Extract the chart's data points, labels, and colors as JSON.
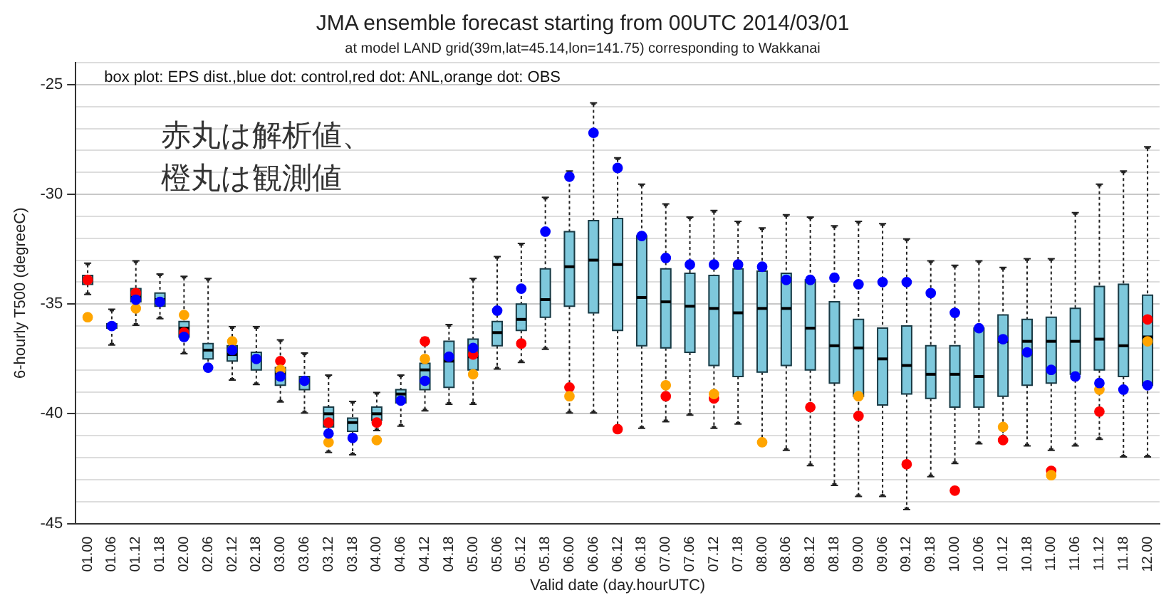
{
  "chart_data": {
    "type": "box",
    "title": "JMA ensemble forecast starting from 00UTC 2014/03/01",
    "subtitle": "at model LAND grid(39m,lat=45.14,lon=141.75) corresponding to Wakkanai",
    "xlabel": "Valid date (day.hourUTC)",
    "ylabel": "6-hourly T500 (degreeC)",
    "annotations": [
      "box plot: EPS dist.,blue dot: control,red dot: ANL,orange dot: OBS",
      "赤丸は解析値、橙丸は観測値"
    ],
    "categories": [
      "01.00",
      "01.06",
      "01.12",
      "01.18",
      "02.00",
      "02.06",
      "02.12",
      "02.18",
      "03.00",
      "03.06",
      "03.12",
      "03.18",
      "04.00",
      "04.06",
      "04.12",
      "04.18",
      "05.00",
      "05.06",
      "05.12",
      "05.18",
      "06.00",
      "06.06",
      "06.12",
      "06.18",
      "07.00",
      "07.06",
      "07.12",
      "07.18",
      "08.00",
      "08.06",
      "08.12",
      "08.18",
      "09.00",
      "09.06",
      "09.12",
      "09.18",
      "10.00",
      "10.06",
      "10.12",
      "10.18",
      "11.00",
      "11.06",
      "11.12",
      "11.18",
      "12.00"
    ],
    "ylim": [
      -45,
      -24
    ],
    "yticks": [
      -45,
      {
        "value": -44,
        "label": null
      },
      {
        "value": -43,
        "label": null
      },
      {
        "value": -42,
        "label": null
      },
      {
        "value": -41,
        "label": null
      },
      -40,
      {
        "value": -39,
        "label": null
      },
      {
        "value": -38,
        "label": null
      },
      {
        "value": -37,
        "label": null
      },
      {
        "value": -36,
        "label": null
      },
      -35,
      {
        "value": -34,
        "label": null
      },
      {
        "value": -33,
        "label": null
      },
      {
        "value": -32,
        "label": null
      },
      {
        "value": -31,
        "label": null
      },
      -30,
      {
        "value": -29,
        "label": null
      },
      {
        "value": -28,
        "label": null
      },
      {
        "value": -27,
        "label": null
      },
      {
        "value": -26,
        "label": null
      },
      -25,
      {
        "value": -24,
        "label": null
      }
    ],
    "grid": "y",
    "legend": false,
    "marker": "circle",
    "series": [
      {
        "type": "box",
        "color": "#7ec8dc",
        "boxes": [
          {
            "low": -34.5,
            "q1": -34.1,
            "median": -33.9,
            "q3": -33.7,
            "high": -33.2
          },
          {
            "low": -36.8,
            "q1": -36.1,
            "median": -36.0,
            "q3": -35.9,
            "high": -35.3
          },
          {
            "low": -35.9,
            "q1": -34.9,
            "median": -34.7,
            "q3": -34.3,
            "high": -33.1
          },
          {
            "low": -35.6,
            "q1": -35.1,
            "median": -34.8,
            "q3": -34.5,
            "high": -33.7
          },
          {
            "low": -37.2,
            "q1": -36.5,
            "median": -36.1,
            "q3": -35.8,
            "high": -33.8
          },
          {
            "low": -37.9,
            "q1": -37.5,
            "median": -37.1,
            "q3": -36.8,
            "high": -33.9
          },
          {
            "low": -38.4,
            "q1": -37.6,
            "median": -37.3,
            "q3": -36.9,
            "high": -36.1
          },
          {
            "low": -38.6,
            "q1": -38.0,
            "median": -37.5,
            "q3": -37.2,
            "high": -36.1
          },
          {
            "low": -39.4,
            "q1": -38.7,
            "median": -38.2,
            "q3": -37.9,
            "high": -36.7
          },
          {
            "low": -39.9,
            "q1": -38.9,
            "median": -38.5,
            "q3": -38.3,
            "high": -37.3
          },
          {
            "low": -41.7,
            "q1": -40.6,
            "median": -40.0,
            "q3": -39.7,
            "high": -38.3
          },
          {
            "low": -41.8,
            "q1": -40.8,
            "median": -40.4,
            "q3": -40.2,
            "high": -39.5
          },
          {
            "low": -40.7,
            "q1": -40.3,
            "median": -40.0,
            "q3": -39.7,
            "high": -39.1
          },
          {
            "low": -40.5,
            "q1": -39.5,
            "median": -39.1,
            "q3": -38.9,
            "high": -38.3
          },
          {
            "low": -39.8,
            "q1": -38.9,
            "median": -38.0,
            "q3": -37.7,
            "high": -36.6
          },
          {
            "low": -39.5,
            "q1": -38.8,
            "median": -37.6,
            "q3": -36.7,
            "high": -36.0
          },
          {
            "low": -39.5,
            "q1": -38.0,
            "median": -37.4,
            "q3": -36.6,
            "high": -33.9
          },
          {
            "low": -37.9,
            "q1": -36.9,
            "median": -36.3,
            "q3": -35.8,
            "high": -32.9
          },
          {
            "low": -37.6,
            "q1": -36.2,
            "median": -35.7,
            "q3": -35.0,
            "high": -32.3
          },
          {
            "low": -37.0,
            "q1": -35.6,
            "median": -34.8,
            "q3": -33.4,
            "high": -30.2
          },
          {
            "low": -39.9,
            "q1": -35.1,
            "median": -33.3,
            "q3": -31.7,
            "high": -29.0
          },
          {
            "low": -39.9,
            "q1": -35.4,
            "median": -33.0,
            "q3": -31.2,
            "high": -25.9
          },
          {
            "low": -40.6,
            "q1": -36.2,
            "median": -33.2,
            "q3": -31.1,
            "high": -28.4
          },
          {
            "low": -40.6,
            "q1": -36.9,
            "median": -34.7,
            "q3": -31.9,
            "high": -29.6
          },
          {
            "low": -40.3,
            "q1": -37.0,
            "median": -34.9,
            "q3": -33.4,
            "high": -30.5
          },
          {
            "low": -40.0,
            "q1": -37.2,
            "median": -35.1,
            "q3": -33.6,
            "high": -31.1
          },
          {
            "low": -40.6,
            "q1": -37.8,
            "median": -35.2,
            "q3": -33.7,
            "high": -30.8
          },
          {
            "low": -40.4,
            "q1": -38.3,
            "median": -35.4,
            "q3": -33.4,
            "high": -31.3
          },
          {
            "low": -41.2,
            "q1": -38.1,
            "median": -35.2,
            "q3": -33.5,
            "high": -31.6
          },
          {
            "low": -41.6,
            "q1": -37.8,
            "median": -35.2,
            "q3": -33.6,
            "high": -31.0
          },
          {
            "low": -42.3,
            "q1": -38.0,
            "median": -36.1,
            "q3": -33.9,
            "high": -31.1
          },
          {
            "low": -43.2,
            "q1": -38.6,
            "median": -36.9,
            "q3": -34.9,
            "high": -31.5
          },
          {
            "low": -43.7,
            "q1": -39.2,
            "median": -37.0,
            "q3": -35.7,
            "high": -31.3
          },
          {
            "low": -43.7,
            "q1": -39.6,
            "median": -37.5,
            "q3": -36.1,
            "high": -31.4
          },
          {
            "low": -44.3,
            "q1": -39.1,
            "median": -37.8,
            "q3": -36.0,
            "high": -32.1
          },
          {
            "low": -42.8,
            "q1": -39.3,
            "median": -38.2,
            "q3": -36.9,
            "high": -33.1
          },
          {
            "low": -42.2,
            "q1": -39.7,
            "median": -38.2,
            "q3": -36.9,
            "high": -33.3
          },
          {
            "low": -41.3,
            "q1": -39.7,
            "median": -38.3,
            "q3": -36.1,
            "high": -33.1
          },
          {
            "low": -41.0,
            "q1": -39.2,
            "median": -36.7,
            "q3": -35.5,
            "high": -33.4
          },
          {
            "low": -41.4,
            "q1": -38.7,
            "median": -36.7,
            "q3": -35.7,
            "high": -33.0
          },
          {
            "low": -41.6,
            "q1": -38.6,
            "median": -36.7,
            "q3": -35.6,
            "high": -33.0
          },
          {
            "low": -41.4,
            "q1": -38.2,
            "median": -36.7,
            "q3": -35.2,
            "high": -30.9
          },
          {
            "low": -41.1,
            "q1": -38.0,
            "median": -36.6,
            "q3": -34.2,
            "high": -29.6
          },
          {
            "low": -41.9,
            "q1": -38.3,
            "median": -36.9,
            "q3": -34.1,
            "high": -29.0
          },
          {
            "low": -41.9,
            "q1": -38.7,
            "median": -36.5,
            "q3": -34.6,
            "high": -27.9
          }
        ]
      },
      {
        "type": "scatter",
        "color": "#0000ff",
        "x": [
          "01.00",
          "01.06",
          "01.12",
          "01.18",
          "02.00",
          "02.06",
          "02.12",
          "02.18",
          "03.00",
          "03.06",
          "03.12",
          "03.18",
          "04.00",
          "04.06",
          "04.12",
          "04.18",
          "05.00",
          "05.06",
          "05.12",
          "05.18",
          "06.00",
          "06.06",
          "06.12",
          "06.18",
          "07.00",
          "07.06",
          "07.12",
          "07.18",
          "08.00",
          "08.06",
          "08.12",
          "08.18",
          "09.00",
          "09.06",
          "09.12",
          "09.18",
          "10.00",
          "10.06",
          "10.12",
          "10.18",
          "11.00",
          "11.06",
          "11.12",
          "11.18",
          "12.00"
        ],
        "values": [
          null,
          -36.0,
          -34.8,
          -34.9,
          -36.5,
          -37.9,
          -37.1,
          -37.5,
          -38.3,
          -38.5,
          -40.9,
          -41.1,
          null,
          -39.4,
          -38.5,
          -37.4,
          -37.0,
          -35.3,
          -34.3,
          -31.7,
          -29.2,
          -27.2,
          -28.8,
          -31.9,
          -32.9,
          -33.2,
          -33.2,
          -33.2,
          -33.3,
          -33.9,
          -33.9,
          -33.8,
          -34.1,
          -34.0,
          -34.0,
          -34.5,
          -35.4,
          -36.1,
          -36.6,
          -37.2,
          -38.0,
          -38.3,
          -38.6,
          -38.9,
          -38.7
        ]
      },
      {
        "type": "scatter",
        "color": "#ffa500",
        "x": [
          "01.00",
          "01.06",
          "01.12",
          "01.18",
          "02.00",
          "02.06",
          "02.12",
          "02.18",
          "03.00",
          "03.06",
          "03.12",
          "03.18",
          "04.00",
          "04.06",
          "04.12",
          "04.18",
          "05.00",
          "05.06",
          "05.12",
          "05.18",
          "06.00",
          "06.06",
          "06.12",
          "06.18",
          "07.00",
          "07.06",
          "07.12",
          "07.18",
          "08.00",
          "08.06",
          "08.12",
          "08.18",
          "09.00",
          "09.06",
          "09.12",
          "09.18",
          "10.00",
          "10.06",
          "10.12",
          "10.18",
          "11.00",
          "11.06",
          "11.12",
          "11.18",
          "12.00"
        ],
        "values": [
          -35.6,
          null,
          -35.2,
          null,
          -35.5,
          null,
          -36.7,
          null,
          -38.0,
          null,
          -41.3,
          null,
          -41.2,
          null,
          -37.5,
          null,
          -38.2,
          null,
          null,
          null,
          -39.2,
          null,
          null,
          null,
          -38.7,
          null,
          -39.1,
          null,
          -41.3,
          null,
          null,
          null,
          -39.2,
          null,
          null,
          null,
          null,
          null,
          -40.6,
          null,
          -42.8,
          null,
          -38.9,
          null,
          -36.7
        ]
      },
      {
        "type": "scatter",
        "color": "#ff0000",
        "x": [
          "01.00",
          "01.06",
          "01.12",
          "01.18",
          "02.00",
          "02.06",
          "02.12",
          "02.18",
          "03.00",
          "03.06",
          "03.12",
          "03.18",
          "04.00",
          "04.06",
          "04.12",
          "04.18",
          "05.00",
          "05.06",
          "05.12",
          "05.18",
          "06.00",
          "06.06",
          "06.12",
          "06.18",
          "07.00",
          "07.06",
          "07.12",
          "07.18",
          "08.00",
          "08.06",
          "08.12",
          "08.18",
          "09.00",
          "09.06",
          "09.12",
          "09.18",
          "10.00",
          "10.06",
          "10.12",
          "10.18",
          "11.00",
          "11.06",
          "11.12",
          "11.18",
          "12.00"
        ],
        "values": [
          -33.9,
          null,
          -34.5,
          null,
          -36.3,
          null,
          null,
          null,
          -37.6,
          null,
          -40.4,
          null,
          -40.4,
          null,
          -36.7,
          null,
          -37.3,
          null,
          -36.8,
          null,
          -38.8,
          null,
          -40.7,
          null,
          -39.2,
          null,
          -39.3,
          null,
          null,
          null,
          -39.7,
          null,
          -40.1,
          null,
          -42.3,
          null,
          -43.5,
          null,
          -41.2,
          null,
          -42.6,
          null,
          -39.9,
          null,
          -35.7
        ]
      }
    ]
  }
}
